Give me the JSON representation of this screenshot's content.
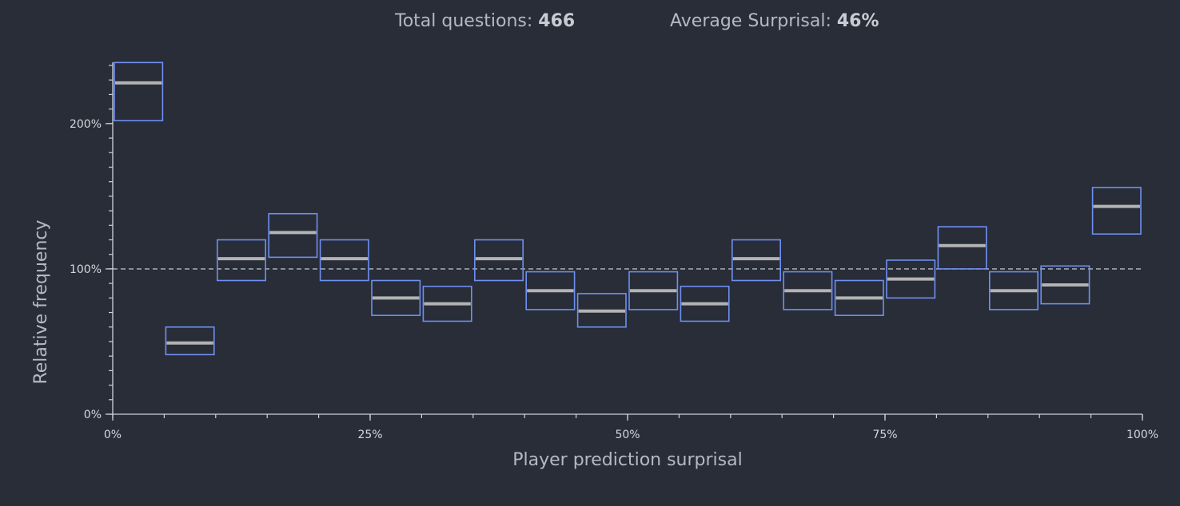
{
  "header": {
    "total_label": "Total questions: ",
    "total_value": "466",
    "avg_label": "Average Surprisal: ",
    "avg_value": "46%"
  },
  "colors": {
    "background": "#282d37",
    "box_stroke": "#6f8ff2",
    "median_line": "#b3b3b3",
    "axis": "#cfd3da",
    "reference_line": "#cfd3da"
  },
  "chart_data": {
    "type": "box",
    "xlabel": "Player prediction surprisal",
    "ylabel": "Relative frequency",
    "xlim": [
      0,
      100
    ],
    "ylim": [
      0,
      240
    ],
    "x_ticks": [
      {
        "value": 0,
        "label": "0%"
      },
      {
        "value": 25,
        "label": "25%"
      },
      {
        "value": 50,
        "label": "50%"
      },
      {
        "value": 75,
        "label": "75%"
      },
      {
        "value": 100,
        "label": "100%"
      }
    ],
    "x_minor_step": 5,
    "y_ticks": [
      {
        "value": 0,
        "label": "0%"
      },
      {
        "value": 100,
        "label": "100%"
      },
      {
        "value": 200,
        "label": "200%"
      }
    ],
    "y_minor_step": 10,
    "reference_line": 100,
    "bins": [
      {
        "x0": 0,
        "x1": 5,
        "low": 202,
        "mid": 228,
        "high": 242
      },
      {
        "x0": 5,
        "x1": 10,
        "low": 41,
        "mid": 49,
        "high": 60
      },
      {
        "x0": 10,
        "x1": 15,
        "low": 92,
        "mid": 107,
        "high": 120
      },
      {
        "x0": 15,
        "x1": 20,
        "low": 108,
        "mid": 125,
        "high": 138
      },
      {
        "x0": 20,
        "x1": 25,
        "low": 92,
        "mid": 107,
        "high": 120
      },
      {
        "x0": 25,
        "x1": 30,
        "low": 68,
        "mid": 80,
        "high": 92
      },
      {
        "x0": 30,
        "x1": 35,
        "low": 64,
        "mid": 76,
        "high": 88
      },
      {
        "x0": 35,
        "x1": 40,
        "low": 92,
        "mid": 107,
        "high": 120
      },
      {
        "x0": 40,
        "x1": 45,
        "low": 72,
        "mid": 85,
        "high": 98
      },
      {
        "x0": 45,
        "x1": 50,
        "low": 60,
        "mid": 71,
        "high": 83
      },
      {
        "x0": 50,
        "x1": 55,
        "low": 72,
        "mid": 85,
        "high": 98
      },
      {
        "x0": 55,
        "x1": 60,
        "low": 64,
        "mid": 76,
        "high": 88
      },
      {
        "x0": 60,
        "x1": 65,
        "low": 92,
        "mid": 107,
        "high": 120
      },
      {
        "x0": 65,
        "x1": 70,
        "low": 72,
        "mid": 85,
        "high": 98
      },
      {
        "x0": 70,
        "x1": 75,
        "low": 68,
        "mid": 80,
        "high": 92
      },
      {
        "x0": 75,
        "x1": 80,
        "low": 80,
        "mid": 93,
        "high": 106
      },
      {
        "x0": 80,
        "x1": 85,
        "low": 100,
        "mid": 116,
        "high": 129
      },
      {
        "x0": 85,
        "x1": 90,
        "low": 72,
        "mid": 85,
        "high": 98
      },
      {
        "x0": 90,
        "x1": 95,
        "low": 76,
        "mid": 89,
        "high": 102
      },
      {
        "x0": 95,
        "x1": 100,
        "low": 124,
        "mid": 143,
        "high": 156
      }
    ]
  }
}
